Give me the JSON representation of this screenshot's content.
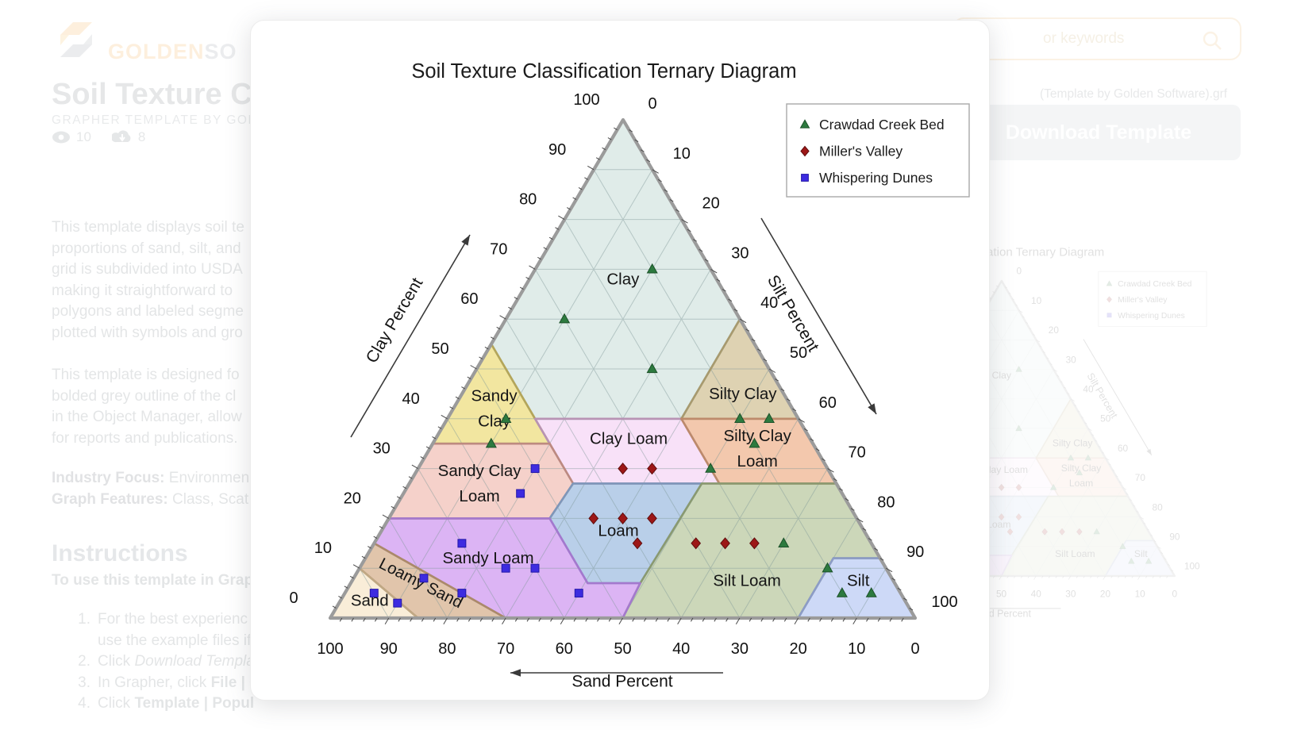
{
  "background": {
    "brand": {
      "golden": "GOLDEN",
      "rest": "SO"
    },
    "page_title": "Soil Texture Cla",
    "subtitle": "GRAPHER TEMPLATE BY GOLD",
    "stats": {
      "views": "10",
      "downloads": "8"
    },
    "paragraph1": [
      "This template displays soil te",
      "proportions of sand, silt, and",
      "grid is subdivided into USDA",
      "making it straightforward to",
      "polygons and labeled segme",
      "plotted with symbols and gro"
    ],
    "paragraph2": [
      "This template is designed fo",
      "bolded grey outline of the cl",
      "in the Object Manager, allow",
      "for reports and publications."
    ],
    "industry_focus_label": "Industry Focus:",
    "industry_focus_value": " Environmen",
    "graph_features_label": "Graph Features:",
    "graph_features_value": " Class, Scat",
    "instructions_heading": "Instructions",
    "instructions_intro": "To use this template in Grap",
    "steps": [
      {
        "num": "1.",
        "pre": "For the best experienc",
        "styled": "",
        "line2": "use the example files if"
      },
      {
        "num": "2.",
        "pre": "Click ",
        "styled": "Download Templa"
      },
      {
        "num": "3.",
        "pre": "In Grapher, click ",
        "styled": "File | O"
      },
      {
        "num": "4.",
        "pre": "Click ",
        "styled": "Template | Popul"
      }
    ],
    "search_placeholder": "or keywords",
    "file_caption": "(Template by Golden Software).grf",
    "download_button": "Download Template"
  },
  "chart_data": {
    "type": "scatter-ternary",
    "title": "Soil Texture Classification Ternary Diagram",
    "axes": {
      "clay": {
        "label": "Clay Percent",
        "min": 0,
        "max": 100,
        "tick_step": 10,
        "minor_tick_step": 2,
        "tick_labels": [
          0,
          10,
          20,
          30,
          40,
          50,
          60,
          70,
          80,
          90,
          100
        ],
        "edge": "left, 0 at bottom-left rising to 100 at apex"
      },
      "silt": {
        "label": "Silt Percent",
        "min": 0,
        "max": 100,
        "tick_step": 10,
        "minor_tick_step": 2,
        "tick_labels": [
          0,
          10,
          20,
          30,
          40,
          50,
          60,
          70,
          80,
          90,
          100
        ],
        "edge": "right, 0 at apex falling to 100 at bottom-right"
      },
      "sand": {
        "label": "Sand Percent",
        "min": 0,
        "max": 100,
        "tick_step": 10,
        "minor_tick_step": 2,
        "tick_labels": [
          100,
          90,
          80,
          70,
          60,
          50,
          40,
          30,
          20,
          10,
          0
        ],
        "edge": "bottom, 100 at left to 0 at right"
      }
    },
    "legend": {
      "position": "top-right",
      "entries": [
        "Crawdad Creek Bed",
        "Miller's Valley",
        "Whispering Dunes"
      ]
    },
    "grid": {
      "step": 10,
      "color": "#7f9898"
    },
    "regions": [
      {
        "name": "Clay",
        "fill": "#e0ece9",
        "stroke": "#93a8a2",
        "vertices": [
          [
            100,
            0,
            0
          ],
          [
            55,
            45,
            0
          ],
          [
            40,
            45,
            15
          ],
          [
            40,
            20,
            40
          ],
          [
            60,
            0,
            40
          ]
        ],
        "label": {
          "lines": [
            "Clay"
          ],
          "pos": [
            68,
            16,
            16
          ],
          "rot": 0
        }
      },
      {
        "name": "Silty Clay",
        "fill": "#ded2b2",
        "stroke": "#a89a6e",
        "vertices": [
          [
            60,
            0,
            40
          ],
          [
            40,
            20,
            40
          ],
          [
            40,
            0,
            60
          ]
        ],
        "label": {
          "lines": [
            "Silty Clay"
          ],
          "pos": [
            45,
            7,
            48
          ],
          "rot": 0
        }
      },
      {
        "name": "Sandy Clay",
        "fill": "#f2e6a0",
        "stroke": "#b5a659",
        "vertices": [
          [
            55,
            45,
            0
          ],
          [
            35,
            65,
            0
          ],
          [
            35,
            45,
            20
          ],
          [
            40,
            45,
            15
          ]
        ],
        "label": {
          "lines": [
            "Sandy",
            "Clay"
          ],
          "pos": [
            42,
            51,
            7
          ],
          "rot": 0
        }
      },
      {
        "name": "Clay Loam",
        "fill": "#f8e1f8",
        "stroke": "#b893b4",
        "vertices": [
          [
            40,
            45,
            15
          ],
          [
            40,
            20,
            40
          ],
          [
            27,
            20,
            53
          ],
          [
            27,
            45,
            28
          ]
        ],
        "label": {
          "lines": [
            "Clay Loam"
          ],
          "pos": [
            36,
            31,
            33
          ],
          "rot": 0
        }
      },
      {
        "name": "Silty Clay Loam",
        "fill": "#f3c8ad",
        "stroke": "#bd8a6b",
        "vertices": [
          [
            40,
            20,
            40
          ],
          [
            40,
            0,
            60
          ],
          [
            27,
            0,
            73
          ],
          [
            27,
            20,
            53
          ]
        ],
        "label": {
          "lines": [
            "Silty Clay",
            "Loam"
          ],
          "pos": [
            34,
            10,
            56
          ],
          "rot": 0
        }
      },
      {
        "name": "Sandy Clay Loam",
        "fill": "#f5d1ca",
        "stroke": "#bd8a80",
        "vertices": [
          [
            35,
            65,
            0
          ],
          [
            20,
            80,
            0
          ],
          [
            20,
            52.5,
            27.5
          ],
          [
            27,
            45,
            28
          ],
          [
            35,
            45,
            20
          ]
        ],
        "label": {
          "lines": [
            "Sandy Clay",
            "Loam"
          ],
          "pos": [
            27,
            61,
            12
          ],
          "rot": 0
        }
      },
      {
        "name": "Loam",
        "fill": "#b9cfe9",
        "stroke": "#7e97ba",
        "vertices": [
          [
            27,
            45,
            28
          ],
          [
            27,
            23,
            50
          ],
          [
            7,
            43.5,
            49.5
          ],
          [
            7,
            52.5,
            40.5
          ],
          [
            20,
            52.5,
            27.5
          ]
        ],
        "label": {
          "lines": [
            "Loam"
          ],
          "pos": [
            17.5,
            42,
            40.5
          ],
          "rot": 0
        }
      },
      {
        "name": "Silt Loam",
        "fill": "#ccd7b9",
        "stroke": "#8a9a70",
        "vertices": [
          [
            27,
            23,
            50
          ],
          [
            27,
            0,
            73
          ],
          [
            12,
            0,
            88
          ],
          [
            12,
            8,
            80
          ],
          [
            0,
            20,
            80
          ],
          [
            0,
            50,
            50
          ],
          [
            7,
            43.5,
            49.5
          ]
        ],
        "label": {
          "lines": [
            "Silt Loam"
          ],
          "pos": [
            7.5,
            25,
            67.5
          ],
          "rot": 0
        }
      },
      {
        "name": "Silt",
        "fill": "#cdd9f7",
        "stroke": "#8c9cc8",
        "vertices": [
          [
            12,
            8,
            80
          ],
          [
            12,
            0,
            88
          ],
          [
            0,
            0,
            100
          ],
          [
            0,
            20,
            80
          ]
        ],
        "label": {
          "lines": [
            "Silt"
          ],
          "pos": [
            7.5,
            6,
            86.5
          ],
          "rot": 0
        }
      },
      {
        "name": "Sandy Loam",
        "fill": "#dcb4f4",
        "stroke": "#a478ce",
        "vertices": [
          [
            20,
            52.5,
            27.5
          ],
          [
            20,
            80,
            0
          ],
          [
            15,
            85,
            0
          ],
          [
            0,
            70,
            30
          ],
          [
            0,
            50,
            50
          ],
          [
            7,
            43.5,
            49.5
          ],
          [
            7,
            52.5,
            40.5
          ]
        ],
        "label": {
          "lines": [
            "Sandy Loam"
          ],
          "pos": [
            12,
            67,
            21
          ],
          "rot": 0
        }
      },
      {
        "name": "Loamy Sand",
        "fill": "#e1c5ab",
        "stroke": "#ab8a68",
        "vertices": [
          [
            15,
            85,
            0
          ],
          [
            10,
            90,
            0
          ],
          [
            0,
            85,
            15
          ],
          [
            0,
            70,
            30
          ]
        ],
        "label": {
          "lines": [
            "Loamy Sand"
          ],
          "pos": [
            7,
            81,
            12
          ],
          "rot": 27
        }
      },
      {
        "name": "Sand",
        "fill": "#f9edd8",
        "stroke": "#c0a884",
        "vertices": [
          [
            10,
            90,
            0
          ],
          [
            0,
            100,
            0
          ],
          [
            0,
            85,
            15
          ]
        ],
        "label": {
          "lines": [
            "Sand"
          ],
          "pos": [
            3.5,
            91.5,
            5
          ],
          "rot": 0
        }
      }
    ],
    "series": [
      {
        "name": "Crawdad Creek Bed",
        "marker": "triangle",
        "color": "#2d7a3f",
        "edge": "#1c5129",
        "points": [
          [
            70,
            10,
            20
          ],
          [
            60,
            30,
            10
          ],
          [
            50,
            20,
            30
          ],
          [
            40,
            50,
            10
          ],
          [
            35,
            55,
            10
          ],
          [
            40,
            10,
            50
          ],
          [
            40,
            5,
            55
          ],
          [
            35,
            10,
            55
          ],
          [
            30,
            20,
            50
          ],
          [
            15,
            15,
            70
          ],
          [
            10,
            10,
            80
          ],
          [
            5,
            10,
            85
          ],
          [
            5,
            5,
            90
          ]
        ]
      },
      {
        "name": "Miller's Valley",
        "marker": "diamond",
        "color": "#9d1717",
        "edge": "#5f0d0d",
        "points": [
          [
            30,
            35,
            35
          ],
          [
            30,
            30,
            40
          ],
          [
            20,
            45,
            35
          ],
          [
            20,
            40,
            40
          ],
          [
            20,
            35,
            45
          ],
          [
            15,
            40,
            45
          ],
          [
            15,
            30,
            55
          ],
          [
            15,
            25,
            60
          ],
          [
            15,
            20,
            65
          ]
        ]
      },
      {
        "name": "Whispering Dunes",
        "marker": "square",
        "color": "#3d2be0",
        "edge": "#2317a8",
        "points": [
          [
            30,
            50,
            20
          ],
          [
            25,
            55,
            20
          ],
          [
            15,
            70,
            15
          ],
          [
            10,
            65,
            25
          ],
          [
            10,
            60,
            30
          ],
          [
            8,
            80,
            12
          ],
          [
            5,
            75,
            20
          ],
          [
            5,
            90,
            5
          ],
          [
            3,
            87,
            10
          ],
          [
            5,
            55,
            40
          ]
        ]
      }
    ],
    "point_format": "[clay %, sand %, silt %]"
  }
}
